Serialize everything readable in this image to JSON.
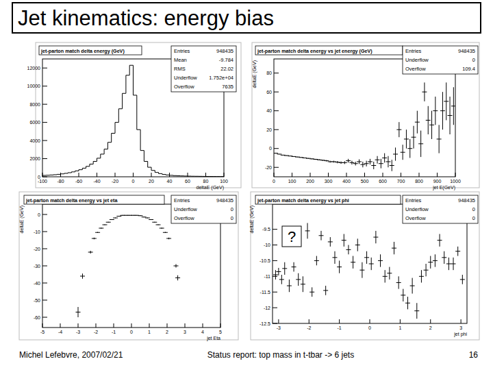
{
  "slide": {
    "title": "Jet kinematics: energy bias",
    "author_date": "Michel Lefebvre, 2007/02/21",
    "subject": "Status report: top mass in t-tbar -> 6 jets",
    "page": 16
  },
  "chart_data": [
    {
      "type": "histogram",
      "title": "jet-parton match delta energy (GeV)",
      "x_label": "deltaE (GeV)",
      "bins": [
        -100,
        -96,
        -92,
        -88,
        -84,
        -80,
        -76,
        -72,
        -68,
        -64,
        -60,
        -56,
        -52,
        -48,
        -44,
        -40,
        -36,
        -32,
        -28,
        -24,
        -20,
        -16,
        -12,
        -8,
        -4,
        0,
        4,
        8,
        12,
        16,
        20,
        24,
        28,
        32,
        36,
        40,
        44,
        48,
        52,
        56,
        60,
        64,
        68,
        72,
        76,
        80,
        84,
        88,
        92,
        96,
        100
      ],
      "values": [
        150,
        170,
        200,
        230,
        270,
        320,
        380,
        450,
        540,
        650,
        780,
        950,
        1150,
        1400,
        1700,
        2050,
        2500,
        3050,
        3800,
        4800,
        6000,
        7500,
        9200,
        11200,
        12300,
        9000,
        5200,
        2900,
        1700,
        1050,
        700,
        480,
        350,
        260,
        200,
        160,
        130,
        110,
        95,
        80,
        70,
        60,
        55,
        50,
        45,
        40,
        36,
        33,
        30,
        28
      ],
      "xlim": [
        -100,
        100
      ],
      "xticks": [
        -100,
        -80,
        -60,
        -40,
        -20,
        0,
        20,
        40,
        60,
        80,
        100
      ],
      "ylim": [
        0,
        13000
      ],
      "yticks": [
        0,
        2000,
        4000,
        6000,
        8000,
        10000,
        12000
      ],
      "stats": [
        {
          "name": "Entries",
          "value": 948435
        },
        {
          "name": "Mean",
          "value": -9.784
        },
        {
          "name": "RMS",
          "value": 22.02
        },
        {
          "name": "Underflow",
          "value": 17520,
          "label": "1.752e+04"
        },
        {
          "name": "Overflow",
          "value": 7635
        }
      ]
    },
    {
      "type": "scatter",
      "title": "jet-parton match delta energy vs jet energy (GeV)",
      "x_label": "jet E(GeV)",
      "y_label": "deltaE (GeV)",
      "x": [
        10,
        30,
        50,
        70,
        90,
        110,
        130,
        150,
        170,
        190,
        210,
        230,
        250,
        270,
        290,
        310,
        330,
        350,
        370,
        390,
        410,
        430,
        450,
        470,
        490,
        510,
        530,
        550,
        570,
        590,
        610,
        630,
        650,
        670,
        690,
        710,
        730,
        750,
        770,
        790,
        810,
        830,
        850,
        870,
        890,
        910,
        930,
        950,
        970,
        990
      ],
      "values": [
        -5,
        -6,
        -7,
        -7.5,
        -8,
        -8.5,
        -9,
        -9.5,
        -10,
        -10.5,
        -11,
        -11.5,
        -12,
        -12.5,
        -13,
        -14,
        -14,
        -14.5,
        -15,
        -15,
        -13,
        -15,
        -16,
        -14,
        -17,
        -16,
        -14,
        -18,
        -12,
        -16,
        -10,
        -14,
        -18,
        -6,
        20,
        -4,
        10,
        0,
        12,
        28,
        5,
        60,
        30,
        25,
        40,
        10,
        40,
        50,
        35,
        45
      ],
      "errors": [
        0.3,
        0.2,
        0.2,
        0.2,
        0.2,
        0.2,
        0.3,
        0.3,
        0.3,
        0.4,
        0.5,
        0.5,
        0.6,
        0.7,
        0.8,
        1,
        1,
        1.2,
        1.3,
        1.5,
        2,
        2,
        2,
        2.5,
        3,
        3,
        3,
        4,
        4,
        5,
        5,
        6,
        6,
        7,
        8,
        8,
        10,
        10,
        12,
        12,
        14,
        10,
        15,
        15,
        15,
        15,
        20,
        20,
        20,
        20
      ],
      "xlim": [
        0,
        1000
      ],
      "xticks": [
        0,
        100,
        200,
        300,
        400,
        500,
        600,
        700,
        800,
        900,
        1000
      ],
      "ylim": [
        -30,
        95
      ],
      "yticks": [
        -20,
        0,
        20,
        40,
        60,
        80
      ],
      "stats": [
        {
          "name": "Entries",
          "value": 948435
        },
        {
          "name": "Underflow",
          "value": 0
        },
        {
          "name": "Overflow",
          "value": 109.4
        }
      ]
    },
    {
      "type": "scatter",
      "title": "jet-parton match delta energy vs jet eta",
      "x_label": "jet Eta",
      "y_label": "deltaE (GeV)",
      "x": [
        -3.0,
        -2.75,
        -2.3,
        -2.1,
        -1.9,
        -1.7,
        -1.5,
        -1.3,
        -1.1,
        -0.9,
        -0.7,
        -0.5,
        -0.3,
        -0.1,
        0.1,
        0.3,
        0.5,
        0.7,
        0.9,
        1.1,
        1.3,
        1.5,
        1.7,
        1.9,
        2.1,
        2.5,
        2.6
      ],
      "values": [
        -57,
        -36,
        -22,
        -14,
        -10.5,
        -8,
        -6,
        -4.5,
        -3,
        -2,
        -1,
        -0.5,
        -0.5,
        -0.5,
        -0.5,
        -0.5,
        -0.7,
        -1.5,
        -2,
        -3,
        -4.5,
        -6,
        -8,
        -10.5,
        -14,
        -30,
        -37
      ],
      "errors": [
        3,
        1.5,
        0.8,
        0.5,
        0.3,
        0.3,
        0.2,
        0.2,
        0.2,
        0.2,
        0.2,
        0.2,
        0.2,
        0.2,
        0.2,
        0.2,
        0.2,
        0.2,
        0.2,
        0.2,
        0.2,
        0.2,
        0.3,
        0.3,
        0.5,
        1,
        1.5
      ],
      "xlim": [
        -5,
        5
      ],
      "xticks": [
        -5,
        -4,
        -3,
        -2,
        -1,
        0,
        1,
        2,
        3,
        4,
        5
      ],
      "ylim": [
        -66,
        6
      ],
      "yticks": [
        -60,
        -50,
        -40,
        -30,
        -20,
        -10,
        0
      ],
      "stats": [
        {
          "name": "Entries",
          "value": 948435
        },
        {
          "name": "Underflow",
          "value": 0
        },
        {
          "name": "Overflow",
          "value": 0
        }
      ]
    },
    {
      "type": "scatter",
      "title": "jet-parton match delta energy vs jet phi",
      "x_label": "jet phi",
      "y_label": "deltaE (GeV)",
      "x": [
        -3.1,
        -3.0,
        -2.9,
        -2.8,
        -2.65,
        -2.5,
        -2.35,
        -2.2,
        -2.05,
        -1.9,
        -1.75,
        -1.6,
        -1.45,
        -1.3,
        -1.15,
        -1.0,
        -0.85,
        -0.7,
        -0.55,
        -0.4,
        -0.25,
        -0.1,
        0.05,
        0.2,
        0.35,
        0.5,
        0.65,
        0.8,
        0.95,
        1.1,
        1.25,
        1.4,
        1.55,
        1.7,
        1.85,
        2.0,
        2.15,
        2.3,
        2.45,
        2.6,
        2.75,
        2.9,
        3.05
      ],
      "values": [
        -10.95,
        -10.85,
        -11.1,
        -10.75,
        -11.3,
        -10.7,
        -11.1,
        -11.25,
        -9.55,
        -11.5,
        -10.5,
        -9.7,
        -11.45,
        -9.9,
        -10.4,
        -10.7,
        -9.85,
        -10.15,
        -10.55,
        -10.0,
        -10.8,
        -10.4,
        -10.6,
        -9.75,
        -10.5,
        -11.0,
        -10.9,
        -10.1,
        -11.2,
        -11.6,
        -11.85,
        -11.3,
        -12.1,
        -11.0,
        -10.8,
        -10.55,
        -10.5,
        -9.85,
        -10.4,
        -10.6,
        -10.6,
        -10.2,
        -11.1
      ],
      "errors": [
        0.15,
        0.12,
        0.15,
        0.2,
        0.2,
        0.15,
        0.2,
        0.25,
        0.25,
        0.15,
        0.15,
        0.15,
        0.15,
        0.15,
        0.2,
        0.2,
        0.2,
        0.15,
        0.2,
        0.2,
        0.25,
        0.2,
        0.2,
        0.2,
        0.2,
        0.2,
        0.2,
        0.2,
        0.2,
        0.2,
        0.2,
        0.25,
        0.25,
        0.2,
        0.2,
        0.2,
        0.2,
        0.2,
        0.2,
        0.2,
        0.2,
        0.15,
        0.15
      ],
      "xlim": [
        -3.2,
        3.2
      ],
      "xticks": [
        -3,
        -2,
        -1,
        0,
        1,
        2,
        3
      ],
      "ylim": [
        -12.5,
        -8.7
      ],
      "yticks": [
        -12.5,
        -12,
        -11.5,
        -11,
        -10.5,
        -10,
        -9.5
      ],
      "annotations": [
        "?"
      ],
      "stats": [
        {
          "name": "Entries",
          "value": 948435
        },
        {
          "name": "Underflow",
          "value": 0
        },
        {
          "name": "Overflow",
          "value": 0
        }
      ]
    }
  ]
}
